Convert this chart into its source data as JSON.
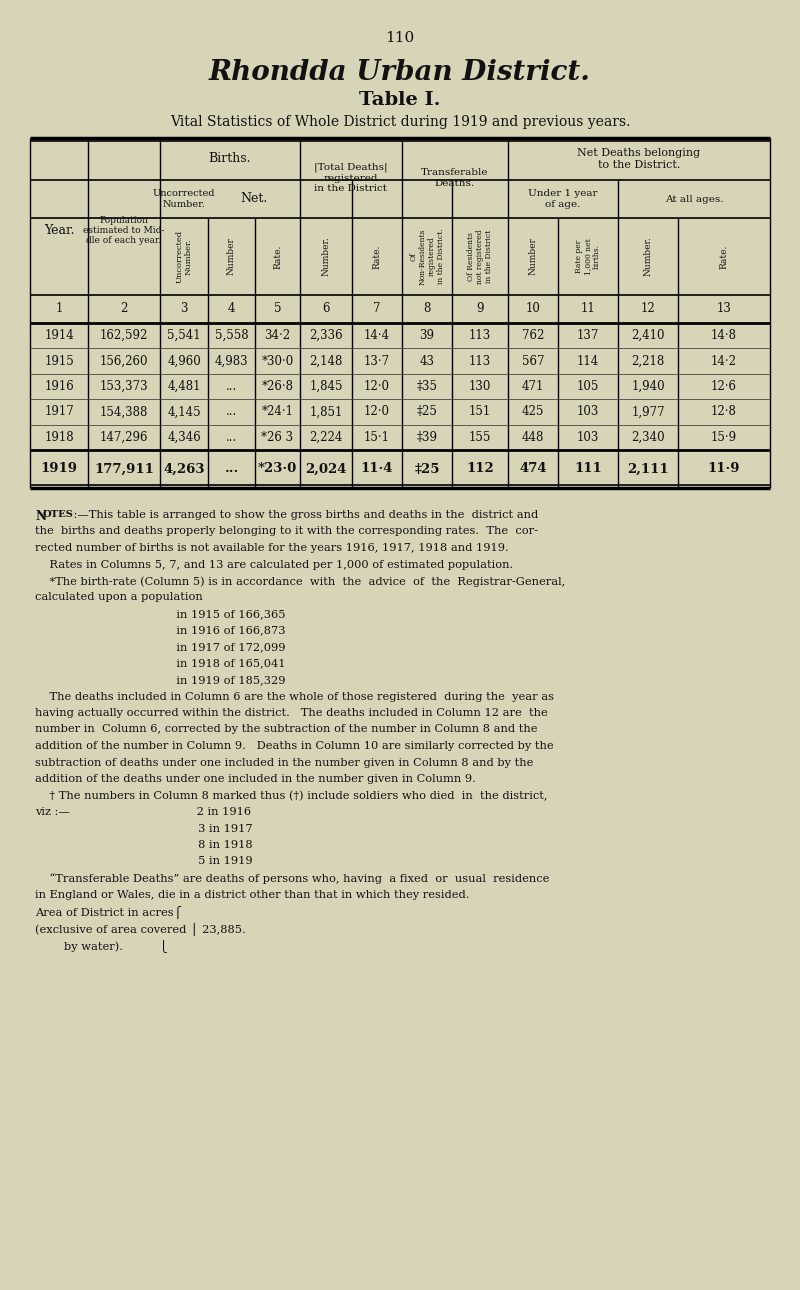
{
  "page_number": "110",
  "title_line1": "Rhondda Urban District.",
  "title_line2": "Table I.",
  "subtitle": "Vital Statistics of Whole District during 1919 and previous years.",
  "bg_color": "#d8d4b8",
  "text_color": "#111111",
  "rows": [
    {
      "year": "1914",
      "bold": false,
      "col2": "162,592",
      "col3": "5,541",
      "col4": "5,558",
      "col5": "34·2",
      "col6": "2,336",
      "col7": "14·4",
      "col8": "39",
      "col9": "113",
      "col10": "762",
      "col11": "137",
      "col12": "2,410",
      "col13": "14·8"
    },
    {
      "year": "1915",
      "bold": false,
      "col2": "156,260",
      "col3": "4,960",
      "col4": "4,983",
      "col5": "*30·0",
      "col6": "2,148",
      "col7": "13·7",
      "col8": "43",
      "col9": "113",
      "col10": "567",
      "col11": "114",
      "col12": "2,218",
      "col13": "14·2"
    },
    {
      "year": "1916",
      "bold": false,
      "col2": "153,373",
      "col3": "4,481",
      "col4": "...",
      "col5": "*26·8",
      "col6": "1,845",
      "col7": "12·0",
      "col8": "‡35",
      "col9": "130",
      "col10": "471",
      "col11": "105",
      "col12": "1,940",
      "col13": "12·6"
    },
    {
      "year": "1917",
      "bold": false,
      "col2": "154,388",
      "col3": "4,145",
      "col4": "...",
      "col5": "*24·1",
      "col6": "1,851",
      "col7": "12·0",
      "col8": "‡25",
      "col9": "151",
      "col10": "425",
      "col11": "103",
      "col12": "1,977",
      "col13": "12·8"
    },
    {
      "year": "1918",
      "bold": false,
      "col2": "147,296",
      "col3": "4,346",
      "col4": "...",
      "col5": "*26 3",
      "col6": "2,224",
      "col7": "15·1",
      "col8": "‡39",
      "col9": "155",
      "col10": "448",
      "col11": "103",
      "col12": "2,340",
      "col13": "15·9"
    },
    {
      "year": "1919",
      "bold": true,
      "col2": "177,911",
      "col3": "4,263",
      "col4": "...",
      "col5": "*23·0",
      "col6": "2,024",
      "col7": "11·4",
      "col8": "‡25",
      "col9": "112",
      "col10": "474",
      "col11": "111",
      "col12": "2,111",
      "col13": "11·9"
    }
  ],
  "notes": [
    [
      "indent0",
      "N",
      "OTES",
      " :—This table is arranged to show the gross births and deaths in the  district and"
    ],
    [
      "indent0",
      "",
      "",
      "the  births and deaths properly belonging to it with the corresponding rates.  The  cor-"
    ],
    [
      "indent0",
      "",
      "",
      "rected number of births is not available for the years 1916, 1917, 1918 and 1919."
    ],
    [
      "indent1",
      "",
      "",
      "Rates in Columns 5, 7, and 13 are calculated per 1,000 of estimated population."
    ],
    [
      "indent1",
      "",
      "",
      "*The birth-rate (Column 5) is in accordance  with  the  advice  of  the  Registrar-General,"
    ],
    [
      "indent0",
      "",
      "",
      "calculated upon a population"
    ],
    [
      "center",
      "",
      "",
      "in 1915 of 166,365"
    ],
    [
      "center",
      "",
      "",
      "in 1916 of 166,873"
    ],
    [
      "center",
      "",
      "",
      "in 1917 of 172,099"
    ],
    [
      "center",
      "",
      "",
      "in 1918 of 165,041"
    ],
    [
      "center",
      "",
      "",
      "in 1919 of 185,329"
    ],
    [
      "indent1",
      "",
      "",
      "The deaths included in Column 6 are the whole of those registered  during the  year as"
    ],
    [
      "indent0",
      "",
      "",
      "having actually occurred within the district.   The deaths included in Column 12 are  the"
    ],
    [
      "indent0",
      "",
      "",
      "number in  Column 6, corrected by the subtraction of the number in Column 8 and the"
    ],
    [
      "indent0",
      "",
      "",
      "addition of the number in Column 9.   Deaths in Column 10 are similarly corrected by the"
    ],
    [
      "indent0",
      "",
      "",
      "subtraction of deaths under one included in the number given in Column 8 and by the"
    ],
    [
      "indent0",
      "",
      "",
      "addition of the deaths under one included in the number given in Column 9."
    ],
    [
      "indent1",
      "",
      "",
      "† The numbers in Column 8 marked thus (†) include soldiers who died  in  the district,"
    ],
    [
      "indent0",
      "",
      "",
      "viz :—                                   2 in 1916"
    ],
    [
      "center",
      "",
      "",
      "3 in 1917"
    ],
    [
      "center",
      "",
      "",
      "8 in 1918"
    ],
    [
      "center",
      "",
      "",
      "5 in 1919"
    ],
    [
      "indent1",
      "",
      "",
      "“Transferable Deaths” are deaths of persons who, having  a fixed  or  usual  residence"
    ],
    [
      "indent0",
      "",
      "",
      "in England or Wales, die in a district other than that in which they resided."
    ],
    [
      "indent0",
      "",
      "",
      "Area of District in acres⎧"
    ],
    [
      "indent0",
      "",
      "",
      "(exclusive of area covered ⎪ 23,885."
    ],
    [
      "indent0",
      "",
      "",
      "        by water).          ⎩"
    ]
  ]
}
